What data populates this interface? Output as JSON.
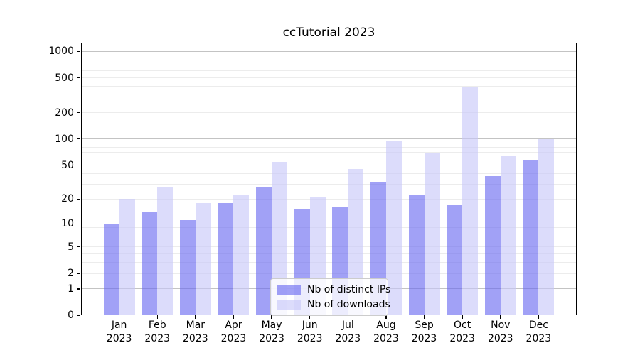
{
  "title": "ccTutorial 2023",
  "chart_data": {
    "type": "bar",
    "title": "ccTutorial 2023",
    "categories": [
      "Jan",
      "Feb",
      "Mar",
      "Apr",
      "May",
      "Jun",
      "Jul",
      "Aug",
      "Sep",
      "Oct",
      "Nov",
      "Dec"
    ],
    "year": "2023",
    "series": [
      {
        "name": "Nb of distinct IPs",
        "color": "#6767f0",
        "values": [
          10,
          14,
          11,
          18,
          28,
          15,
          16,
          32,
          22,
          17,
          37,
          57
        ]
      },
      {
        "name": "Nb of downloads",
        "color": "#c6c6f8",
        "values": [
          20,
          28,
          18,
          22,
          55,
          21,
          45,
          96,
          70,
          400,
          63,
          99
        ]
      }
    ],
    "bar_alpha": 0.62,
    "yscale": "log1p",
    "ylim": [
      0,
      1256
    ],
    "y_ticks": [
      1000,
      500,
      200,
      100,
      50,
      20,
      10,
      5,
      2,
      1,
      0
    ],
    "y_minor_gridlines": [
      2,
      3,
      4,
      5,
      6,
      7,
      8,
      9,
      20,
      30,
      40,
      50,
      60,
      70,
      80,
      90,
      200,
      300,
      400,
      500,
      600,
      700,
      800,
      900
    ],
    "y_major_gridlines": [
      1,
      10,
      100,
      1000
    ],
    "grid": true,
    "legend_position": "lower center"
  }
}
